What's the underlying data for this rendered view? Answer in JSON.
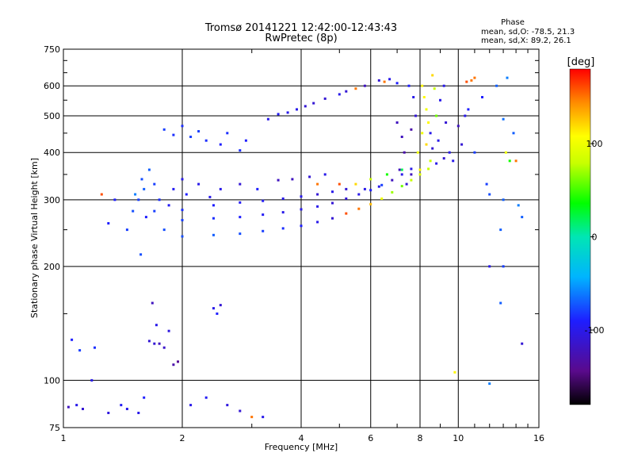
{
  "chart_data": {
    "type": "scatter",
    "title": "Tromsø 20141221 12:42:00-12:43:43",
    "subtitle": "RwPretec (8p)",
    "xlabel": "Frequency [MHz]",
    "ylabel": "Stationary phase Virtual Height [km]",
    "x_scale": "log",
    "y_scale": "log",
    "xlim": [
      1,
      16
    ],
    "ylim": [
      75,
      750
    ],
    "x_ticks": [
      1,
      2,
      4,
      6,
      8,
      10,
      16
    ],
    "x_tick_labels": [
      "1",
      "2",
      "4",
      "6",
      "8",
      "10",
      "16"
    ],
    "y_ticks": [
      75,
      100,
      200,
      300,
      400,
      500,
      600,
      750
    ],
    "y_tick_labels": [
      "75",
      "100",
      "200",
      "300",
      "400",
      "500",
      "600",
      "750"
    ],
    "grid": true,
    "stats": {
      "heading": "Phase",
      "line_o": "mean, sd,O: -78.5, 21.3",
      "line_x": "mean, sd,X: 89.2, 26.1"
    },
    "colorbar": {
      "label": "[deg]",
      "range": [
        -180,
        180
      ],
      "ticks": [
        100,
        0,
        -100
      ],
      "tick_labels": [
        "100",
        "0",
        "-100"
      ],
      "colormap": "rainbow (black-purple-blue-cyan-green-yellow-red)"
    },
    "points": [
      [
        1.03,
        85,
        -120
      ],
      [
        1.08,
        86,
        -100
      ],
      [
        1.12,
        84,
        -110
      ],
      [
        1.05,
        128,
        -90
      ],
      [
        1.1,
        120,
        -80
      ],
      [
        1.2,
        122,
        -85
      ],
      [
        1.18,
        100,
        -100
      ],
      [
        1.4,
        86,
        -95
      ],
      [
        1.45,
        84,
        -100
      ],
      [
        1.3,
        82,
        -105
      ],
      [
        1.7,
        125,
        -110
      ],
      [
        1.65,
        127,
        -110
      ],
      [
        1.75,
        125,
        -120
      ],
      [
        1.8,
        122,
        -115
      ],
      [
        1.72,
        140,
        -100
      ],
      [
        1.68,
        160,
        -120
      ],
      [
        1.85,
        135,
        -105
      ],
      [
        1.9,
        110,
        -130
      ],
      [
        1.95,
        112,
        -140
      ],
      [
        2.4,
        155,
        -100
      ],
      [
        2.45,
        150,
        -90
      ],
      [
        2.5,
        158,
        -110
      ],
      [
        2.3,
        90,
        -95
      ],
      [
        2.1,
        86,
        -100
      ],
      [
        2.6,
        86,
        -105
      ],
      [
        2.8,
        83,
        -110
      ],
      [
        3.0,
        80,
        150
      ],
      [
        3.2,
        80,
        -100
      ],
      [
        1.6,
        90,
        -90
      ],
      [
        1.55,
        82,
        -100
      ],
      [
        1.55,
        300,
        -80
      ],
      [
        1.6,
        320,
        -70
      ],
      [
        1.58,
        340,
        -75
      ],
      [
        1.7,
        330,
        -80
      ],
      [
        1.5,
        280,
        -75
      ],
      [
        1.62,
        270,
        -90
      ],
      [
        1.65,
        360,
        -70
      ],
      [
        1.52,
        310,
        -60
      ],
      [
        1.57,
        215,
        -75
      ],
      [
        1.45,
        250,
        -80
      ],
      [
        1.35,
        300,
        -90
      ],
      [
        1.3,
        260,
        -90
      ],
      [
        1.25,
        310,
        160
      ],
      [
        1.9,
        320,
        -95
      ],
      [
        2.0,
        340,
        -100
      ],
      [
        1.85,
        290,
        -95
      ],
      [
        2.2,
        330,
        -100
      ],
      [
        2.5,
        320,
        -100
      ],
      [
        2.8,
        330,
        -110
      ],
      [
        3.1,
        320,
        -90
      ],
      [
        1.75,
        300,
        -85
      ],
      [
        2.05,
        310,
        -90
      ],
      [
        2.35,
        305,
        -100
      ],
      [
        3.5,
        338,
        -120
      ],
      [
        4.2,
        345,
        -110
      ],
      [
        4.6,
        350,
        -100
      ],
      [
        3.8,
        340,
        -120
      ],
      [
        4.4,
        330,
        150
      ],
      [
        5.0,
        330,
        160
      ],
      [
        5.5,
        330,
        120
      ],
      [
        6.0,
        340,
        80
      ],
      [
        6.6,
        350,
        40
      ],
      [
        7.2,
        360,
        20
      ],
      [
        5.8,
        320,
        -100
      ],
      [
        6.3,
        325,
        -100
      ],
      [
        1.8,
        460,
        -80
      ],
      [
        1.9,
        445,
        -85
      ],
      [
        2.1,
        440,
        -80
      ],
      [
        2.3,
        430,
        -85
      ],
      [
        2.5,
        420,
        -90
      ],
      [
        2.8,
        405,
        -85
      ],
      [
        2.2,
        455,
        -80
      ],
      [
        2.6,
        450,
        -85
      ],
      [
        2.0,
        470,
        -85
      ],
      [
        2.9,
        430,
        -90
      ],
      [
        3.3,
        490,
        -100
      ],
      [
        3.7,
        510,
        -100
      ],
      [
        4.1,
        530,
        -110
      ],
      [
        4.6,
        555,
        -110
      ],
      [
        5.2,
        580,
        -110
      ],
      [
        5.8,
        600,
        -120
      ],
      [
        6.3,
        620,
        -110
      ],
      [
        6.7,
        625,
        -100
      ],
      [
        7.0,
        610,
        -90
      ],
      [
        5.5,
        590,
        150
      ],
      [
        6.5,
        615,
        150
      ],
      [
        5.0,
        570,
        -100
      ],
      [
        4.3,
        540,
        -110
      ],
      [
        3.9,
        520,
        -100
      ],
      [
        3.5,
        505,
        -95
      ],
      [
        7.0,
        480,
        -120
      ],
      [
        7.2,
        440,
        -120
      ],
      [
        7.3,
        400,
        -130
      ],
      [
        7.1,
        360,
        -120
      ],
      [
        7.4,
        330,
        -110
      ],
      [
        7.6,
        350,
        -120
      ],
      [
        7.8,
        500,
        -110
      ],
      [
        7.7,
        560,
        -100
      ],
      [
        7.5,
        600,
        -90
      ],
      [
        7.6,
        460,
        -130
      ],
      [
        8.1,
        600,
        110
      ],
      [
        8.2,
        560,
        110
      ],
      [
        8.3,
        520,
        100
      ],
      [
        8.4,
        480,
        110
      ],
      [
        8.1,
        450,
        100
      ],
      [
        8.3,
        420,
        120
      ],
      [
        8.5,
        380,
        80
      ],
      [
        8.6,
        640,
        120
      ],
      [
        8.7,
        590,
        80
      ],
      [
        8.8,
        500,
        60
      ],
      [
        8.5,
        450,
        -100
      ],
      [
        8.6,
        410,
        -110
      ],
      [
        8.9,
        430,
        -100
      ],
      [
        9.0,
        550,
        -100
      ],
      [
        9.2,
        600,
        -100
      ],
      [
        9.3,
        480,
        -110
      ],
      [
        9.5,
        400,
        -100
      ],
      [
        9.7,
        380,
        -100
      ],
      [
        8.0,
        360,
        110
      ],
      [
        7.9,
        400,
        100
      ],
      [
        10.2,
        420,
        -110
      ],
      [
        10.0,
        470,
        -120
      ],
      [
        10.4,
        500,
        -100
      ],
      [
        10.6,
        520,
        -90
      ],
      [
        10.8,
        620,
        150
      ],
      [
        11.0,
        630,
        150
      ],
      [
        11.5,
        560,
        -90
      ],
      [
        11.0,
        400,
        -80
      ],
      [
        12.5,
        600,
        -70
      ],
      [
        13.2,
        400,
        100
      ],
      [
        13.5,
        380,
        40
      ],
      [
        13.0,
        300,
        -70
      ],
      [
        12.8,
        250,
        -70
      ],
      [
        14.0,
        380,
        150
      ],
      [
        13.8,
        450,
        -70
      ],
      [
        11.8,
        330,
        -80
      ],
      [
        12.0,
        310,
        -75
      ],
      [
        13.0,
        490,
        -65
      ],
      [
        14.2,
        290,
        -60
      ],
      [
        14.5,
        270,
        -70
      ],
      [
        13.3,
        630,
        -60
      ],
      [
        12.0,
        200,
        -100
      ],
      [
        12.8,
        160,
        -70
      ],
      [
        14.5,
        125,
        -110
      ],
      [
        9.8,
        105,
        110
      ],
      [
        12.0,
        98,
        -60
      ],
      [
        13.0,
        200,
        -80
      ],
      [
        10.5,
        615,
        160
      ],
      [
        2.0,
        240,
        -75
      ],
      [
        2.4,
        242,
        -70
      ],
      [
        2.8,
        244,
        -75
      ],
      [
        3.2,
        248,
        -80
      ],
      [
        3.6,
        252,
        -85
      ],
      [
        4.0,
        256,
        -90
      ],
      [
        4.4,
        262,
        -100
      ],
      [
        4.8,
        268,
        -110
      ],
      [
        5.2,
        276,
        160
      ],
      [
        5.6,
        284,
        150
      ],
      [
        6.0,
        292,
        130
      ],
      [
        6.4,
        302,
        100
      ],
      [
        6.8,
        314,
        70
      ],
      [
        7.2,
        326,
        60
      ],
      [
        7.6,
        338,
        80
      ],
      [
        8.0,
        350,
        90
      ],
      [
        8.4,
        362,
        80
      ],
      [
        8.8,
        374,
        -100
      ],
      [
        9.2,
        386,
        -110
      ],
      [
        1.8,
        250,
        -75
      ],
      [
        2.0,
        265,
        -80
      ],
      [
        2.4,
        268,
        -85
      ],
      [
        2.8,
        270,
        -90
      ],
      [
        3.2,
        274,
        -95
      ],
      [
        3.6,
        278,
        -100
      ],
      [
        4.0,
        283,
        -100
      ],
      [
        4.4,
        288,
        -100
      ],
      [
        4.8,
        294,
        -110
      ],
      [
        5.2,
        302,
        -110
      ],
      [
        5.6,
        310,
        -100
      ],
      [
        6.0,
        318,
        -90
      ],
      [
        6.4,
        328,
        -80
      ],
      [
        6.8,
        338,
        -120
      ],
      [
        7.2,
        350,
        -100
      ],
      [
        7.6,
        362,
        -100
      ],
      [
        1.7,
        280,
        -80
      ],
      [
        2.0,
        282,
        -85
      ],
      [
        2.4,
        290,
        -90
      ],
      [
        2.8,
        295,
        -95
      ],
      [
        3.2,
        298,
        -95
      ],
      [
        3.6,
        302,
        -100
      ],
      [
        4.0,
        306,
        -100
      ],
      [
        4.4,
        310,
        -110
      ],
      [
        4.8,
        315,
        -100
      ],
      [
        5.2,
        320,
        -110
      ]
    ]
  }
}
